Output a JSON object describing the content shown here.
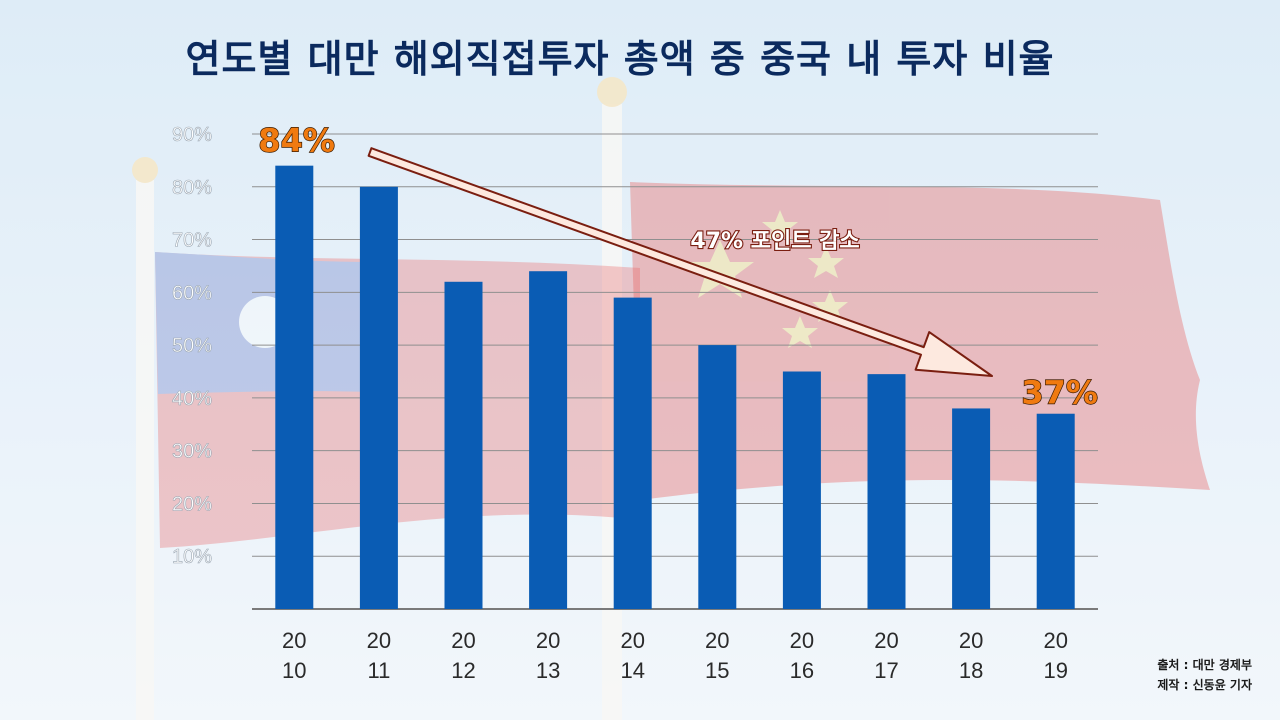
{
  "chart_data": {
    "type": "bar",
    "title": "연도별 대만 해외직접투자 총액 중 중국 내 투자 비율",
    "categories": [
      [
        "20",
        "10"
      ],
      [
        "20",
        "11"
      ],
      [
        "20",
        "12"
      ],
      [
        "20",
        "13"
      ],
      [
        "20",
        "14"
      ],
      [
        "20",
        "15"
      ],
      [
        "20",
        "16"
      ],
      [
        "20",
        "17"
      ],
      [
        "20",
        "18"
      ],
      [
        "20",
        "19"
      ]
    ],
    "values": [
      84,
      80,
      62,
      64,
      59,
      50,
      45,
      44.5,
      38,
      37
    ],
    "ylim": [
      0,
      90
    ],
    "yticks": [
      "10%",
      "20%",
      "30%",
      "40%",
      "50%",
      "60%",
      "70%",
      "80%",
      "90%"
    ],
    "grid": true,
    "bar_color": "#0a5cb4",
    "annotations": {
      "start_label": "84%",
      "end_label": "37%",
      "arrow_label": "47% 포인트 감소",
      "label_color": "#f07a10"
    }
  },
  "source": {
    "line1": "출처 : 대만 경제부",
    "line2": "제작 : 신동윤 기자"
  }
}
